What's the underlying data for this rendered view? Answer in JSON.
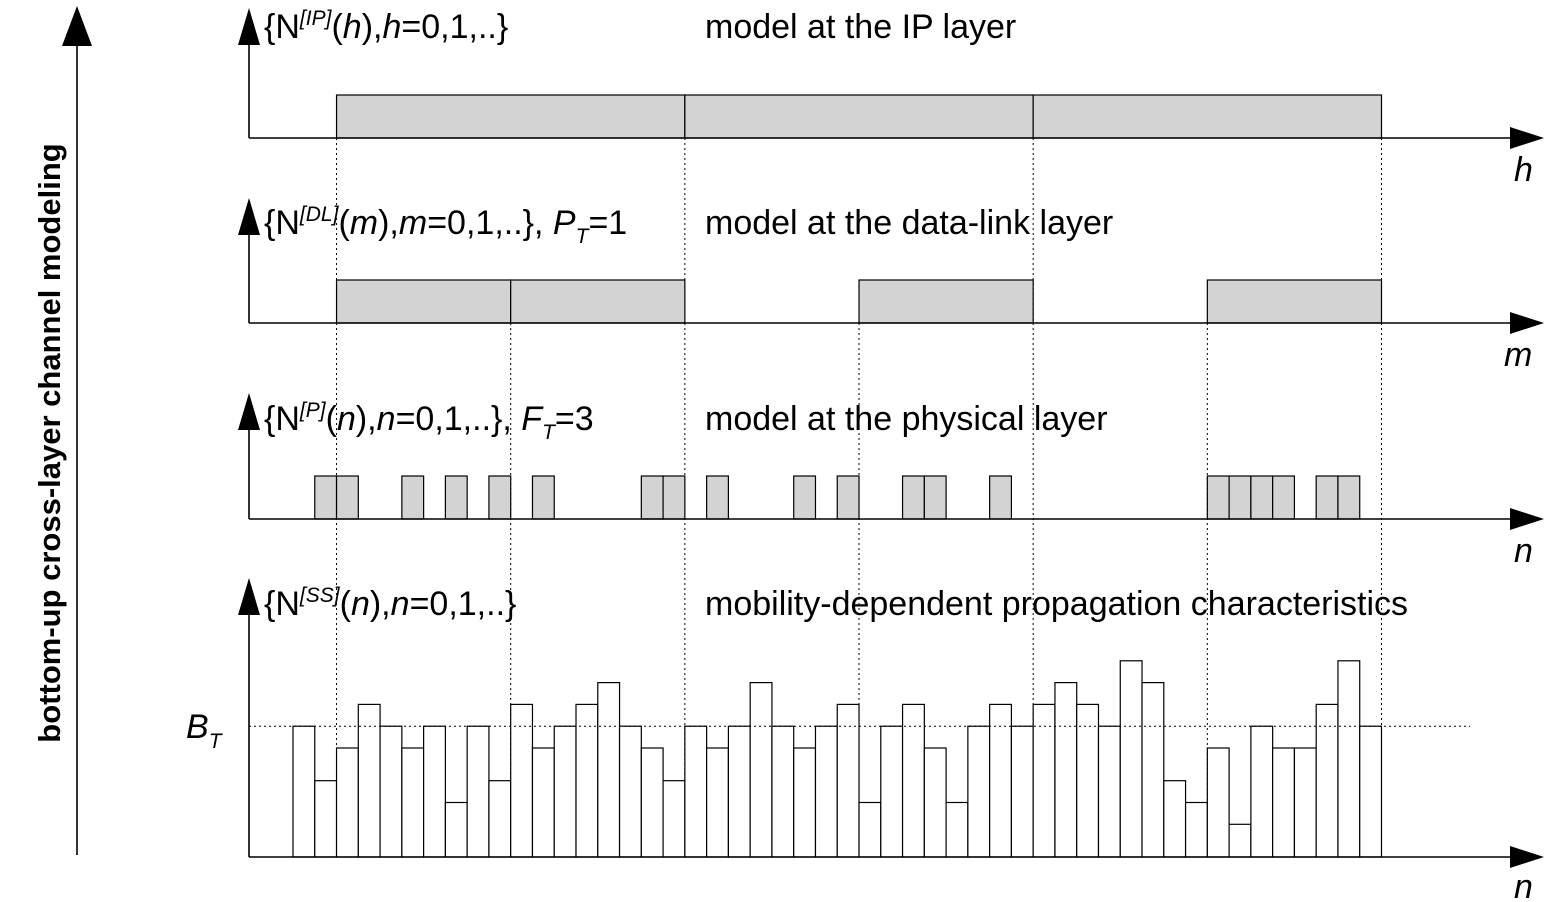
{
  "side_title": "bottom-up cross-layer channel modeling",
  "layers": {
    "ip": {
      "label_parts": [
        "{N",
        "[IP]",
        "(",
        "h",
        "),",
        "h",
        "=0,1,..}"
      ],
      "description": "model at the IP layer",
      "axis_var": "h",
      "blocks": [
        [
          0,
          4
        ],
        [
          4,
          8
        ],
        [
          8,
          12
        ]
      ]
    },
    "datalink": {
      "label_parts": [
        "{N",
        "[DL]",
        "(",
        "m",
        "),",
        "m",
        "=0,1,..}, ",
        "P",
        "T",
        "=1"
      ],
      "description": "model at the data-link layer",
      "axis_var": "m",
      "blocks": [
        [
          0,
          2
        ],
        [
          2,
          4
        ],
        [
          6,
          8
        ],
        [
          10,
          12
        ]
      ]
    },
    "physical": {
      "label_parts": [
        "{N",
        "[P]",
        "(",
        "n",
        "),",
        "n",
        "=0,1,..}, ",
        "F",
        "T",
        "=3"
      ],
      "description": "model at the physical layer",
      "axis_var": "n",
      "blocks": [
        1,
        2,
        5,
        7,
        9,
        11,
        16,
        17,
        19,
        23,
        25,
        28,
        29,
        32,
        42,
        43,
        44,
        45,
        47,
        48
      ]
    },
    "signal": {
      "label_parts": [
        "{N",
        "[SS]",
        "(",
        "n",
        "),",
        "n",
        "=0,1,..}"
      ],
      "description": "mobility-dependent propagation characteristics",
      "axis_var": "n",
      "threshold_symbol": "B",
      "threshold_subscript": "T",
      "threshold_level": 6,
      "max_level": 10,
      "levels": [
        6,
        3.5,
        5,
        7,
        6,
        5,
        6,
        2.5,
        6,
        3.5,
        7,
        5,
        6,
        7,
        8,
        6,
        5,
        3.5,
        6,
        5,
        6,
        8,
        6,
        5,
        6,
        7,
        2.5,
        6,
        7,
        5,
        2.5,
        6,
        7,
        6,
        7,
        8,
        7,
        6,
        9,
        8,
        3.5,
        2.5,
        5,
        1.5,
        6,
        5,
        5,
        7,
        9,
        6
      ]
    }
  }
}
